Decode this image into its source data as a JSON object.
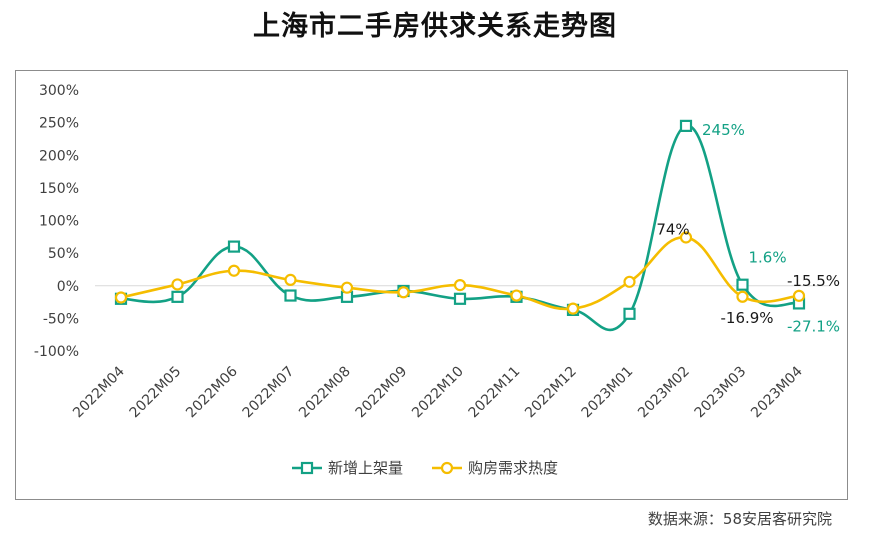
{
  "chart_data": {
    "type": "line",
    "title": "上海市二手房供求关系走势图",
    "source": "数据来源：58安居客研究院",
    "categories": [
      "2022M04",
      "2022M05",
      "2022M06",
      "2022M07",
      "2022M08",
      "2022M09",
      "2022M10",
      "2022M11",
      "2022M12",
      "2023M01",
      "2023M02",
      "2023M03",
      "2023M04"
    ],
    "ylim": [
      -100,
      300
    ],
    "yticks": [
      "-100%",
      "-50%",
      "0%",
      "50%",
      "100%",
      "150%",
      "200%",
      "250%",
      "300%"
    ],
    "grid": false,
    "legend_position": "bottom",
    "series": [
      {
        "name": "新增上架量",
        "color": "#13a185",
        "marker": "square",
        "values": [
          -20,
          -17,
          60,
          -15,
          -17,
          -8,
          -20,
          -17,
          -37,
          -43,
          245,
          1.6,
          -27.1
        ],
        "labels": [
          {
            "index": 10,
            "text": "245%"
          },
          {
            "index": 11,
            "text": "1.6%"
          },
          {
            "index": 12,
            "text": "-27.1%"
          }
        ]
      },
      {
        "name": "购房需求热度",
        "color": "#f5bd00",
        "marker": "circle",
        "values": [
          -18,
          2,
          23,
          9,
          -3,
          -10,
          1,
          -15,
          -35,
          6,
          74,
          -16.9,
          -15.5
        ],
        "labels": [
          {
            "index": 10,
            "text": "74%"
          },
          {
            "index": 11,
            "text": "-16.9%"
          },
          {
            "index": 12,
            "text": "-15.5%"
          }
        ]
      }
    ]
  }
}
